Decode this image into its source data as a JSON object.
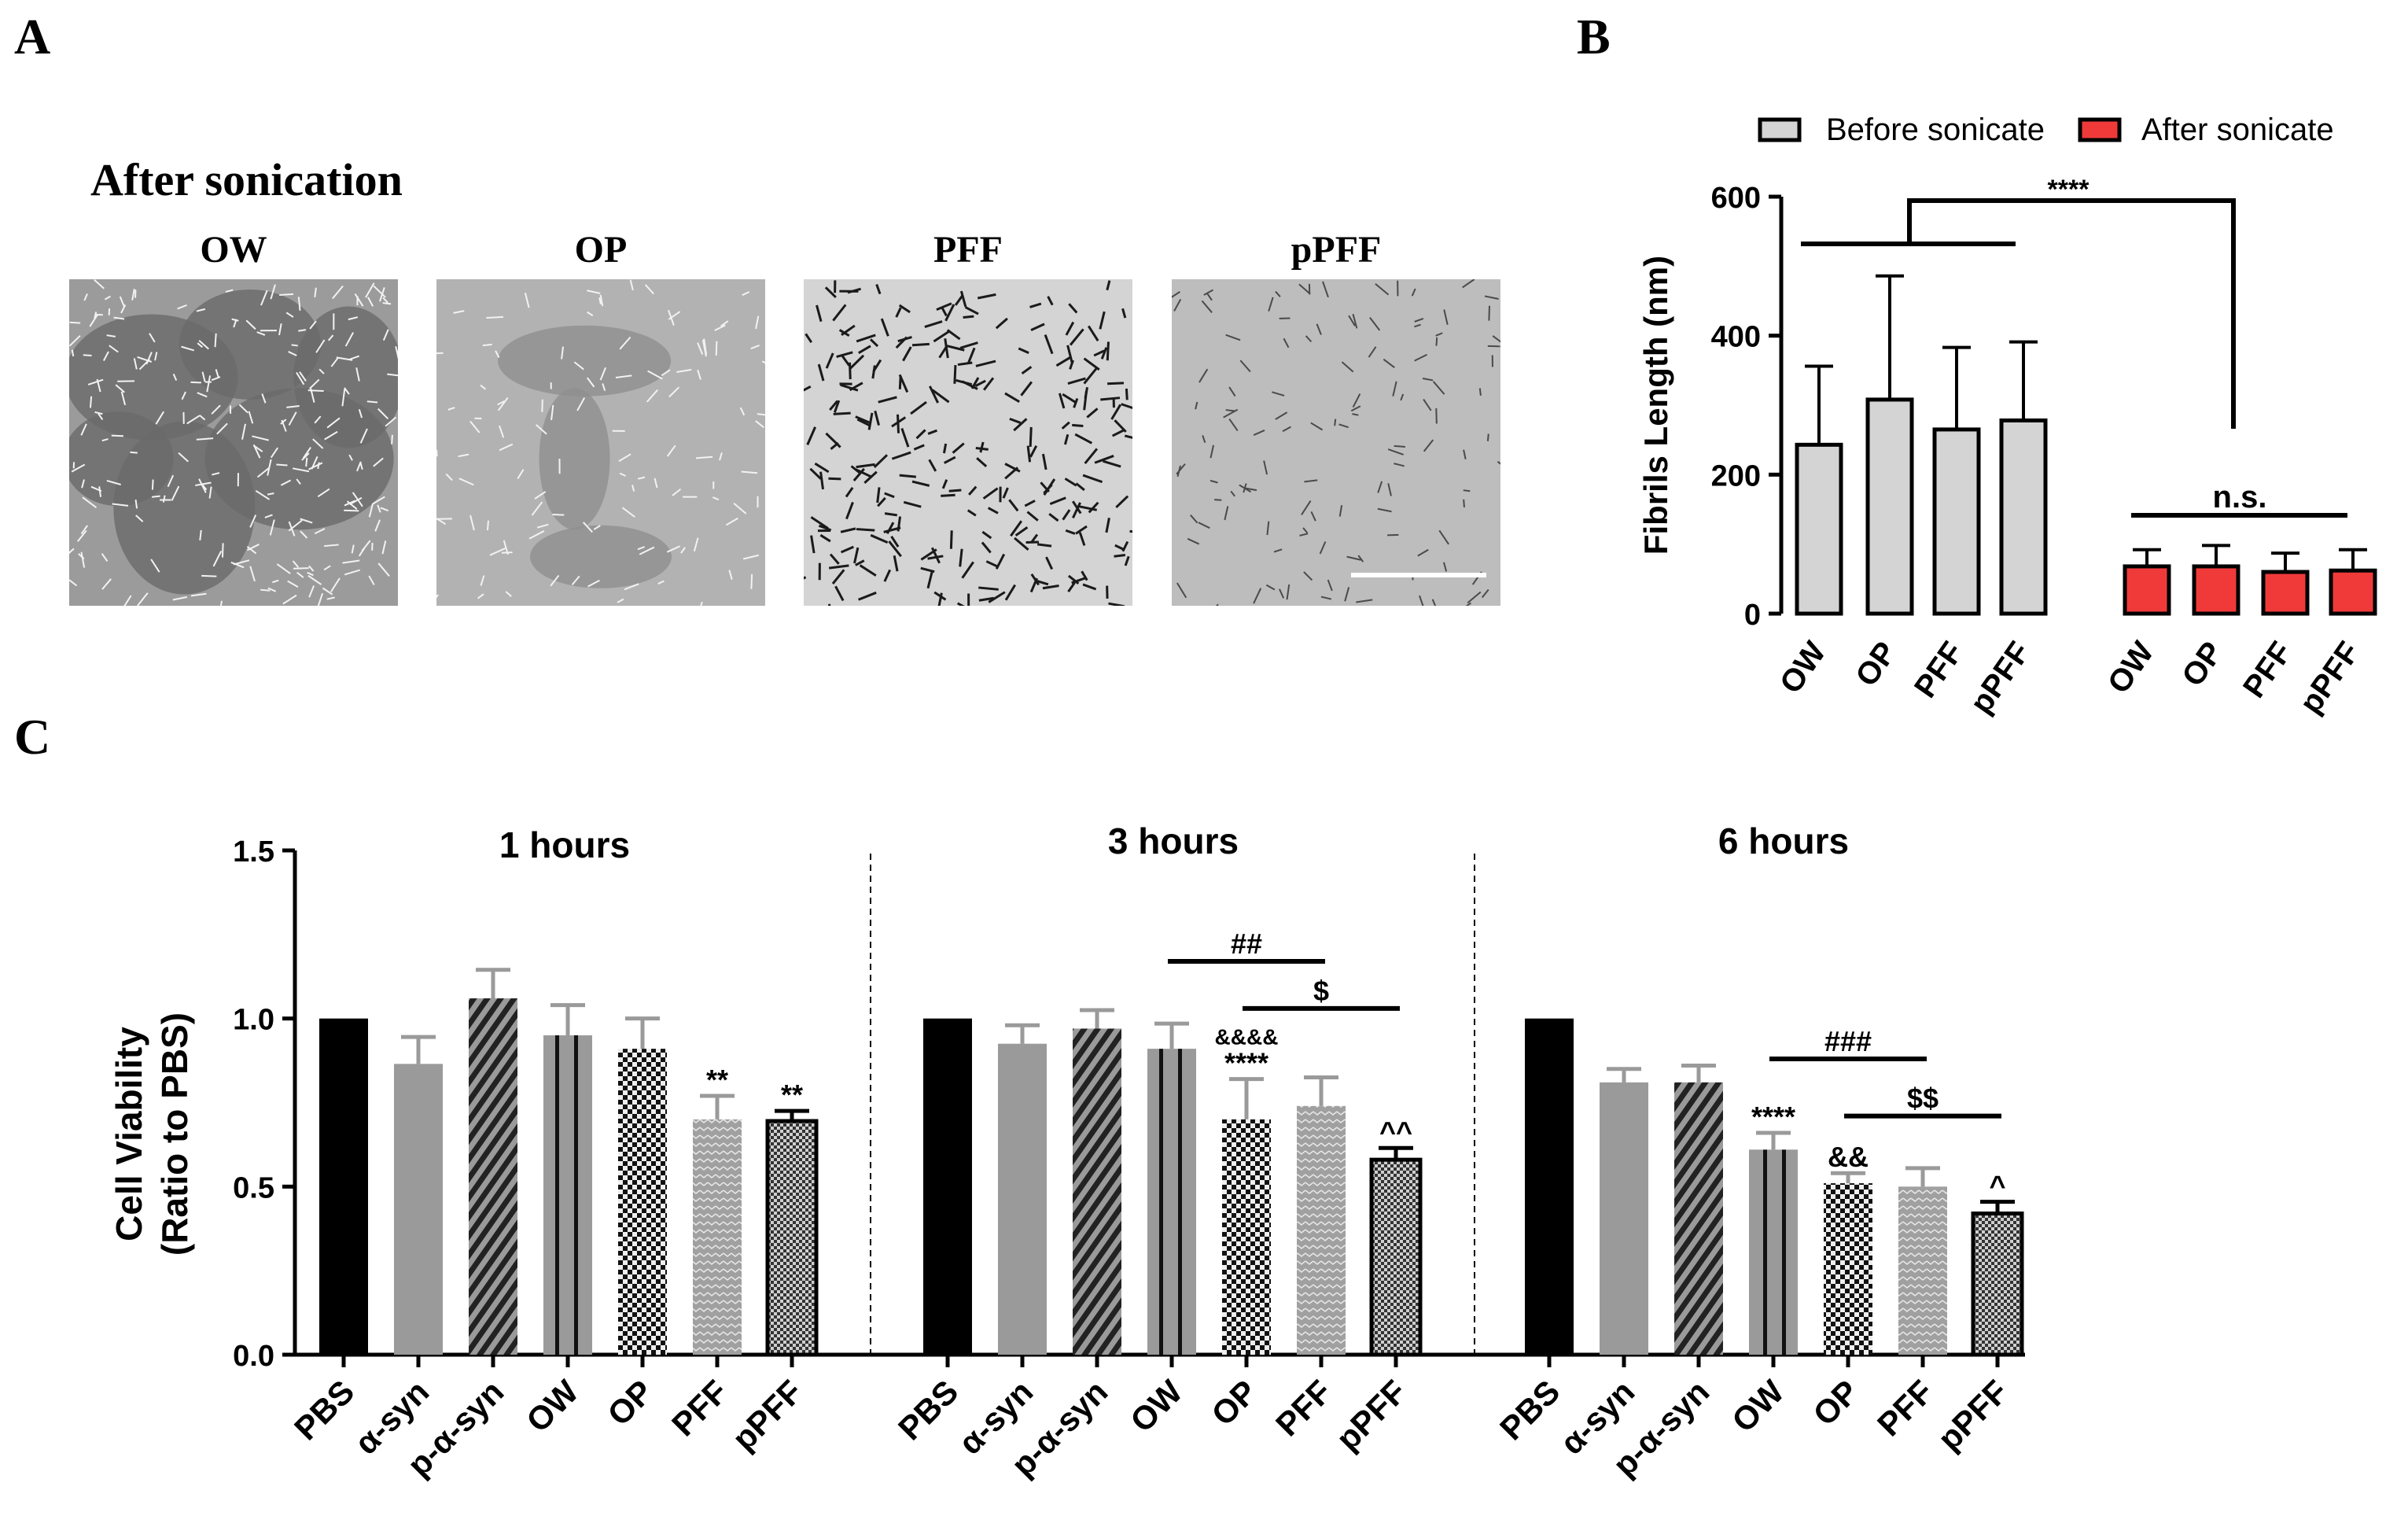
{
  "panel_labels": {
    "a": "A",
    "b": "B",
    "c": "C"
  },
  "panel_a": {
    "heading": "After sonication",
    "images": [
      {
        "label": "OW",
        "style": "ow"
      },
      {
        "label": "OP",
        "style": "op"
      },
      {
        "label": "PFF",
        "style": "pff"
      },
      {
        "label": "pPFF",
        "style": "ppff",
        "scale_bar": true
      }
    ]
  },
  "colors": {
    "before": "#d4d4d4",
    "after": "#f03a3a",
    "black": "#000000",
    "gray": "#9a9a9a"
  },
  "chart_data": [
    {
      "id": "B",
      "type": "bar",
      "ylabel": "Fibrils  Length (nm)",
      "ylim": [
        0,
        600
      ],
      "yticks": [
        0,
        200,
        400,
        600
      ],
      "legend": {
        "placement": "top",
        "entries": [
          "Before sonicate",
          "After sonicate"
        ]
      },
      "categories": [
        "OW",
        "OP",
        "PFF",
        "pPFF"
      ],
      "series": [
        {
          "name": "Before sonicate",
          "values": [
            243,
            308,
            265,
            278
          ],
          "errors": [
            113,
            178,
            118,
            113
          ]
        },
        {
          "name": "After sonicate",
          "values": [
            68,
            68,
            60,
            62
          ],
          "errors": [
            24,
            30,
            27,
            30
          ]
        }
      ],
      "annotations": {
        "between_groups": "****",
        "within_after": "n.s."
      }
    },
    {
      "id": "C",
      "type": "bar",
      "ylabel": "Cell Viability",
      "ylabel2": "(Ratio to PBS)",
      "ylim": [
        0,
        1.5
      ],
      "yticks": [
        "0.0",
        "0.5",
        "1.0",
        "1.5"
      ],
      "categories": [
        "PBS",
        "α-syn",
        "p-α-syn",
        "OW",
        "OP",
        "PFF",
        "pPFF"
      ],
      "groups": [
        {
          "title": "1 hours",
          "values": [
            1.0,
            0.865,
            1.06,
            0.95,
            0.91,
            0.7,
            0.695
          ],
          "errors": [
            0,
            0.08,
            0.085,
            0.09,
            0.09,
            0.07,
            0.03
          ],
          "stars": [
            "",
            "",
            "",
            "",
            "",
            "**",
            "**"
          ],
          "brackets": []
        },
        {
          "title": "3 hours",
          "values": [
            1.0,
            0.925,
            0.97,
            0.91,
            0.7,
            0.74,
            0.58
          ],
          "errors": [
            0,
            0.055,
            0.055,
            0.075,
            0.12,
            0.085,
            0.035
          ],
          "stars": [
            "",
            "",
            "",
            "",
            "****",
            "",
            "^^"
          ],
          "top_marks": [
            "",
            "",
            "",
            "",
            "&&&&",
            "",
            ""
          ],
          "brackets": [
            {
              "from": 3,
              "to": 5,
              "level": 1.17,
              "label": "##"
            },
            {
              "from": 4,
              "to": 6,
              "level": 1.03,
              "label": "$"
            }
          ]
        },
        {
          "title": "6 hours",
          "values": [
            1.0,
            0.81,
            0.81,
            0.61,
            0.51,
            0.5,
            0.42
          ],
          "errors": [
            0,
            0.04,
            0.05,
            0.05,
            0.03,
            0.055,
            0.035
          ],
          "stars": [
            "",
            "",
            "",
            "****",
            "&&",
            "",
            "^"
          ],
          "brackets": [
            {
              "from": 3,
              "to": 5,
              "level": 0.88,
              "label": "###"
            },
            {
              "from": 4,
              "to": 6,
              "level": 0.71,
              "label": "$$"
            }
          ]
        }
      ]
    }
  ]
}
